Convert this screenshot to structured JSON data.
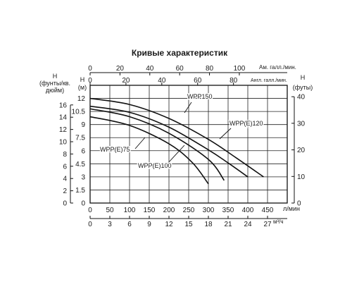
{
  "chart_data": {
    "type": "line",
    "title": "Кривые характеристик",
    "grid": true,
    "axes": {
      "bottom_lpm": {
        "unit": "л/мин",
        "ticks": [
          0,
          50,
          100,
          150,
          200,
          250,
          300,
          350,
          400,
          450
        ],
        "range": [
          0,
          500
        ]
      },
      "bottom_m3h": {
        "unit": "м³/ч",
        "ticks": [
          0,
          3,
          6,
          9,
          12,
          15,
          18,
          21,
          24,
          27
        ],
        "range": [
          0,
          30
        ]
      },
      "top_us_gpm": {
        "label": "Ам. галл./мин.",
        "ticks": [
          0,
          20,
          40,
          60,
          80,
          100
        ]
      },
      "top_imp_gpm": {
        "label": "Англ. галл./мин.",
        "ticks": [
          0,
          20,
          40,
          60,
          80
        ]
      },
      "left_m": {
        "label": "H (м)",
        "ticks": [
          0,
          1.5,
          3,
          4.5,
          6,
          7.5,
          9,
          10.5,
          12
        ],
        "range": [
          0,
          13.5
        ]
      },
      "left_psi": {
        "label": [
          "H",
          "(фунты/кв.",
          "дюйм)"
        ],
        "ticks": [
          0,
          2,
          4,
          6,
          8,
          10,
          12,
          14,
          16
        ]
      },
      "right_ft": {
        "label": "H (футы)",
        "ticks": [
          0,
          10,
          20,
          30,
          40
        ]
      }
    },
    "series": [
      {
        "name": "WPP150",
        "x_lpm": [
          0,
          100,
          200,
          300,
          370,
          440
        ],
        "y_m": [
          12.0,
          11.3,
          9.7,
          7.3,
          5.2,
          3.0
        ]
      },
      {
        "name": "WPP(E)120",
        "x_lpm": [
          0,
          100,
          200,
          300,
          350,
          400
        ],
        "y_m": [
          11.1,
          10.4,
          8.7,
          6.1,
          4.6,
          3.0
        ]
      },
      {
        "name": "WPP(E)100",
        "x_lpm": [
          0,
          100,
          200,
          300,
          340
        ],
        "y_m": [
          10.8,
          9.9,
          8.0,
          5.0,
          2.6
        ]
      },
      {
        "name": "WPP(E)75",
        "x_lpm": [
          0,
          100,
          200,
          260,
          300
        ],
        "y_m": [
          9.9,
          8.9,
          6.8,
          4.6,
          2.2
        ]
      }
    ],
    "labels": [
      "WPP150",
      "WPP(E)120",
      "WPP(E)100",
      "WPP(E)75"
    ]
  }
}
